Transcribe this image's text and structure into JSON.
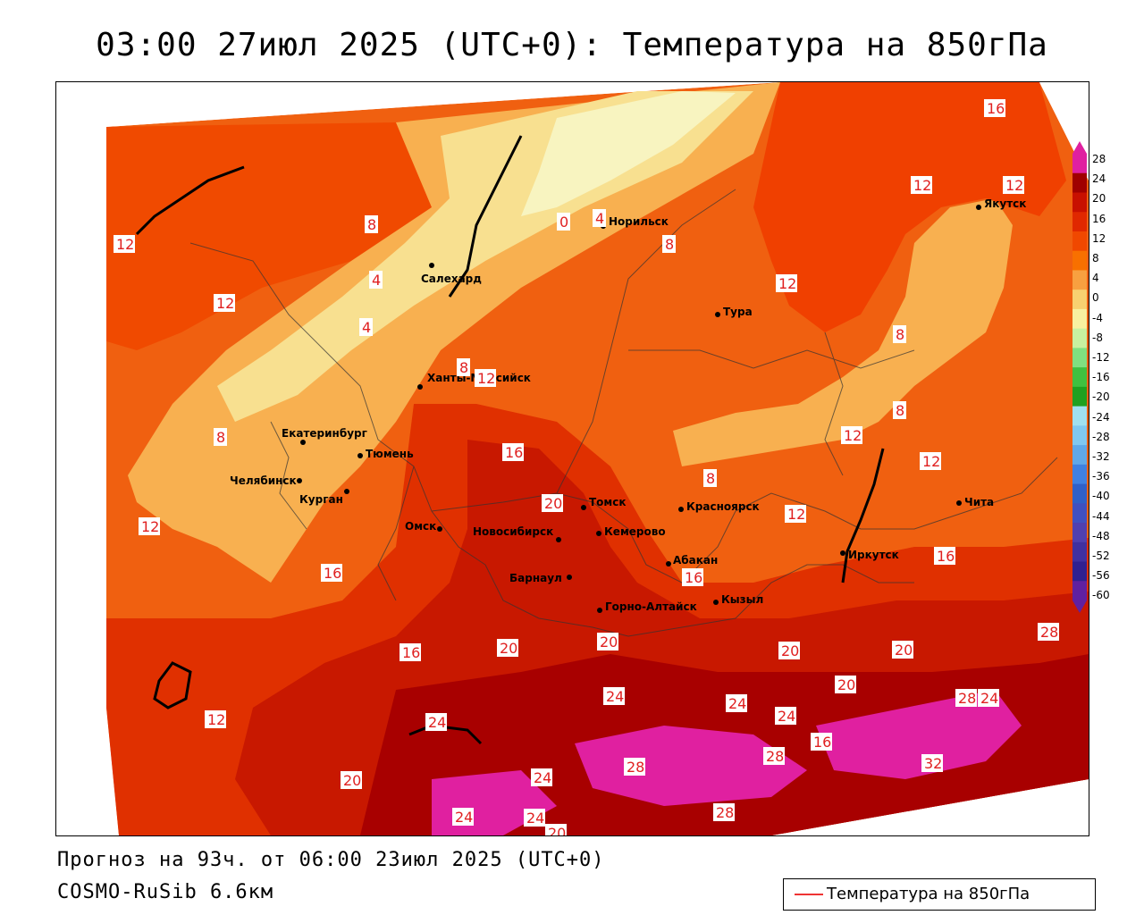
{
  "title": "03:00 27июл 2025 (UTC+0): Температура на 850гПа",
  "footer": {
    "forecast": "Прогноз на 93ч. от 06:00 23июл 2025 (UTC+0)",
    "model": "COSMO-RuSib 6.6км"
  },
  "legend": {
    "label": "Температура на 850гПа",
    "line_color": "#ee3333"
  },
  "colorbar": {
    "labels": [
      "28",
      "24",
      "20",
      "16",
      "12",
      "8",
      "4",
      "0",
      "-4",
      "-8",
      "-12",
      "-16",
      "-20",
      "-24",
      "-28",
      "-32",
      "-36",
      "-40",
      "-44",
      "-48",
      "-52",
      "-56",
      "-60"
    ],
    "colors": [
      "#e020a0",
      "#a00000",
      "#c81000",
      "#e02800",
      "#f04800",
      "#f87000",
      "#f8a040",
      "#f8d070",
      "#f8f0a0",
      "#c8f0a0",
      "#80e080",
      "#40c040",
      "#20a020",
      "#a0e0f0",
      "#80c8f0",
      "#60a8e8",
      "#4080e0",
      "#3060c8",
      "#4050c0",
      "#5040b0",
      "#4030a0",
      "#302090",
      "#6020a0"
    ]
  },
  "cities": [
    {
      "name": "Норильск"
    },
    {
      "name": "Салехард"
    },
    {
      "name": "Ханты-Мансийск"
    },
    {
      "name": "Екатеринбург"
    },
    {
      "name": "Тюмень"
    },
    {
      "name": "Челябинск"
    },
    {
      "name": "Курган"
    },
    {
      "name": "Омск"
    },
    {
      "name": "Новосибирск"
    },
    {
      "name": "Томск"
    },
    {
      "name": "Кемерово"
    },
    {
      "name": "Барнаул"
    },
    {
      "name": "Горно-Алтайск"
    },
    {
      "name": "Абакан"
    },
    {
      "name": "Кызыл"
    },
    {
      "name": "Красноярск"
    },
    {
      "name": "Тура"
    },
    {
      "name": "Якутск"
    },
    {
      "name": "Иркутск"
    },
    {
      "name": "Чита"
    }
  ],
  "isotherm_labels": [
    "16",
    "12",
    "8",
    "0",
    "4",
    "8",
    "12",
    "12",
    "4",
    "4",
    "8",
    "12",
    "12",
    "8",
    "16",
    "12",
    "8",
    "12",
    "8",
    "12",
    "20",
    "16",
    "12",
    "16",
    "8",
    "12",
    "16",
    "20",
    "16",
    "20",
    "20",
    "20",
    "24",
    "24",
    "12",
    "24",
    "24",
    "28",
    "24",
    "16",
    "20",
    "28",
    "24",
    "28",
    "32",
    "28",
    "24",
    "24",
    "20",
    "20",
    "28"
  ]
}
